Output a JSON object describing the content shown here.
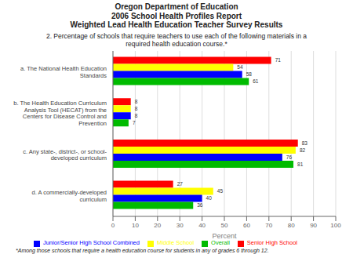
{
  "chart_data": {
    "type": "bar",
    "orientation": "horizontal",
    "title": "Oregon Department of Education\n2006 School Health Profiles Report\nWeighted Lead Health Education Teacher Survey Results",
    "subtitle": "2. Percentage of schools that require teachers to use each of the following materials in a\nrequired health education course.*",
    "categories": [
      "a. The National Health Education\nStandards",
      "b. The Health Education Curriculum\nAnalysis Tool (HECAT) from the\nCenters for Disease Control and\nPrevention",
      "c. Any state-, district-, or school-\ndeveloped curriculum",
      "d. A commercially-developed\ncurriculum"
    ],
    "series": [
      {
        "name": "Senior High School",
        "color": "#FF0000",
        "values": [
          71,
          8,
          83,
          27
        ]
      },
      {
        "name": "Middle School",
        "color": "#FFFF00",
        "values": [
          54,
          8,
          82,
          45
        ]
      },
      {
        "name": "Junior/Senior High School Combined",
        "color": "#0000FF",
        "values": [
          58,
          8,
          76,
          40
        ]
      },
      {
        "name": "Overall",
        "color": "#00BB00",
        "values": [
          61,
          7,
          81,
          36
        ]
      }
    ],
    "xlim": [
      0,
      100
    ],
    "xticks": [
      0,
      10,
      20,
      30,
      40,
      50,
      60,
      70,
      80,
      90,
      100
    ],
    "xlabel": "Percent",
    "grid": true,
    "legend": "bottom",
    "data_labels": true,
    "annotations": [
      "*Among those schools that require a health education course for students in any of grades 6 through 12."
    ]
  }
}
